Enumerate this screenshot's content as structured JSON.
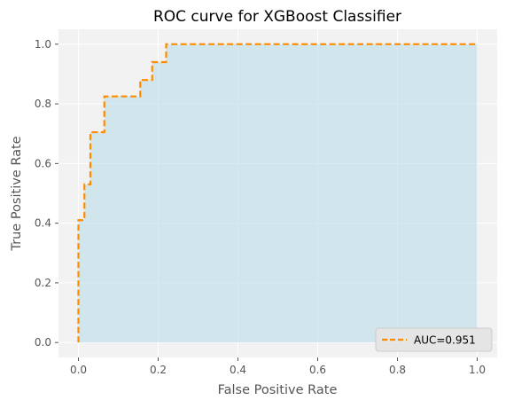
{
  "chart_data": {
    "type": "line",
    "title": "ROC curve for XGBoost Classifier",
    "xlabel": "False Positive Rate",
    "ylabel": "True Positive Rate",
    "xlim": [
      -0.05,
      1.05
    ],
    "ylim": [
      -0.05,
      1.05
    ],
    "xticks": [
      0.0,
      0.2,
      0.4,
      0.6,
      0.8,
      1.0
    ],
    "yticks": [
      0.0,
      0.2,
      0.4,
      0.6,
      0.8,
      1.0
    ],
    "xtick_labels": [
      "0.0",
      "0.2",
      "0.4",
      "0.6",
      "0.8",
      "1.0"
    ],
    "ytick_labels": [
      "0.0",
      "0.2",
      "0.4",
      "0.6",
      "0.8",
      "1.0"
    ],
    "grid": true,
    "legend_position": "lower-right",
    "series": [
      {
        "name": "AUC=0.951",
        "line_style": "dashed",
        "color": "#ff8c00",
        "fill_color": "#add8e6",
        "x": [
          0.0,
          0.0,
          0.0,
          0.015,
          0.015,
          0.03,
          0.03,
          0.065,
          0.065,
          0.155,
          0.155,
          0.185,
          0.185,
          0.22,
          0.22,
          1.0
        ],
        "y": [
          0.0,
          0.41,
          0.41,
          0.41,
          0.53,
          0.53,
          0.705,
          0.705,
          0.825,
          0.825,
          0.88,
          0.88,
          0.94,
          0.94,
          1.0,
          1.0
        ]
      }
    ],
    "colors": {
      "plot_background": "#f2f2f2",
      "grid": "#ffffff",
      "legend_background": "#e5e5e5",
      "legend_border": "#cccccc"
    }
  }
}
